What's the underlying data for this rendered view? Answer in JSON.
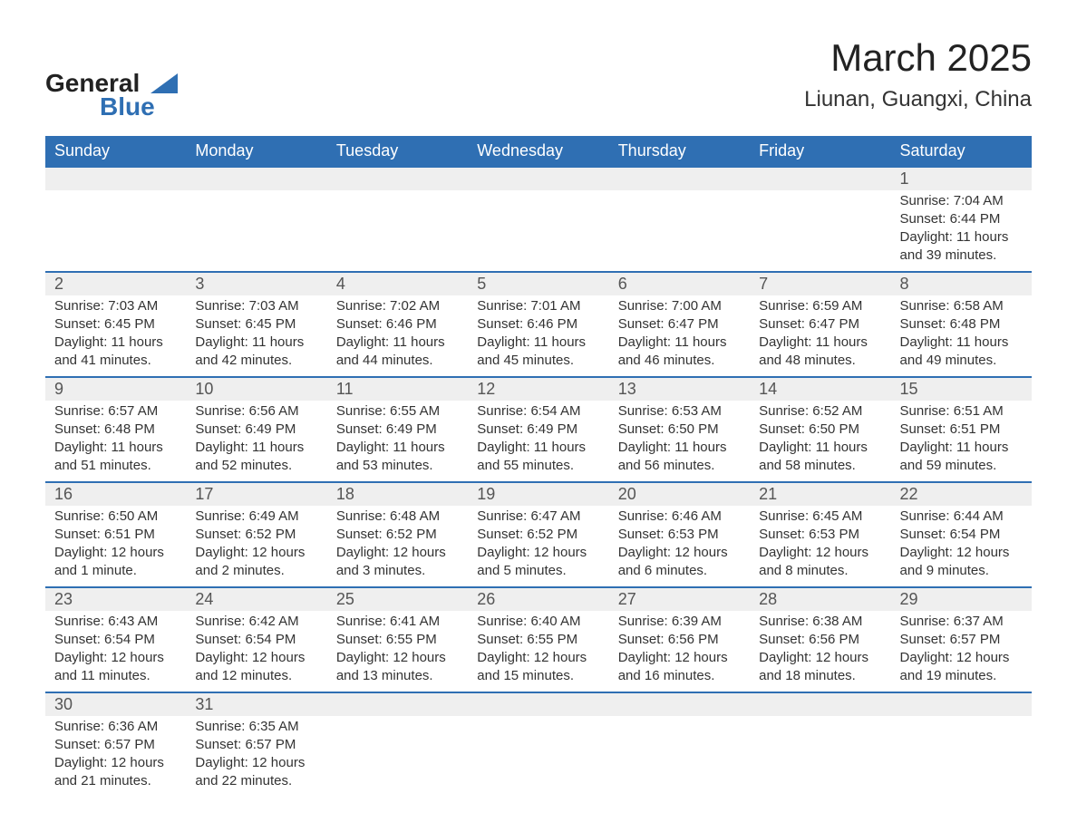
{
  "brand": {
    "name_top": "General",
    "name_bottom": "Blue",
    "accent_color": "#2f6fb3"
  },
  "title": "March 2025",
  "subtitle": "Liunan, Guangxi, China",
  "calendar": {
    "header_bg": "#2f6fb3",
    "header_text_color": "#ffffff",
    "daynum_bg": "#efefef",
    "row_divider_color": "#2f6fb3",
    "text_color": "#333333",
    "columns": [
      "Sunday",
      "Monday",
      "Tuesday",
      "Wednesday",
      "Thursday",
      "Friday",
      "Saturday"
    ],
    "weeks": [
      [
        null,
        null,
        null,
        null,
        null,
        null,
        {
          "n": "1",
          "sunrise": "Sunrise: 7:04 AM",
          "sunset": "Sunset: 6:44 PM",
          "dl1": "Daylight: 11 hours",
          "dl2": "and 39 minutes."
        }
      ],
      [
        {
          "n": "2",
          "sunrise": "Sunrise: 7:03 AM",
          "sunset": "Sunset: 6:45 PM",
          "dl1": "Daylight: 11 hours",
          "dl2": "and 41 minutes."
        },
        {
          "n": "3",
          "sunrise": "Sunrise: 7:03 AM",
          "sunset": "Sunset: 6:45 PM",
          "dl1": "Daylight: 11 hours",
          "dl2": "and 42 minutes."
        },
        {
          "n": "4",
          "sunrise": "Sunrise: 7:02 AM",
          "sunset": "Sunset: 6:46 PM",
          "dl1": "Daylight: 11 hours",
          "dl2": "and 44 minutes."
        },
        {
          "n": "5",
          "sunrise": "Sunrise: 7:01 AM",
          "sunset": "Sunset: 6:46 PM",
          "dl1": "Daylight: 11 hours",
          "dl2": "and 45 minutes."
        },
        {
          "n": "6",
          "sunrise": "Sunrise: 7:00 AM",
          "sunset": "Sunset: 6:47 PM",
          "dl1": "Daylight: 11 hours",
          "dl2": "and 46 minutes."
        },
        {
          "n": "7",
          "sunrise": "Sunrise: 6:59 AM",
          "sunset": "Sunset: 6:47 PM",
          "dl1": "Daylight: 11 hours",
          "dl2": "and 48 minutes."
        },
        {
          "n": "8",
          "sunrise": "Sunrise: 6:58 AM",
          "sunset": "Sunset: 6:48 PM",
          "dl1": "Daylight: 11 hours",
          "dl2": "and 49 minutes."
        }
      ],
      [
        {
          "n": "9",
          "sunrise": "Sunrise: 6:57 AM",
          "sunset": "Sunset: 6:48 PM",
          "dl1": "Daylight: 11 hours",
          "dl2": "and 51 minutes."
        },
        {
          "n": "10",
          "sunrise": "Sunrise: 6:56 AM",
          "sunset": "Sunset: 6:49 PM",
          "dl1": "Daylight: 11 hours",
          "dl2": "and 52 minutes."
        },
        {
          "n": "11",
          "sunrise": "Sunrise: 6:55 AM",
          "sunset": "Sunset: 6:49 PM",
          "dl1": "Daylight: 11 hours",
          "dl2": "and 53 minutes."
        },
        {
          "n": "12",
          "sunrise": "Sunrise: 6:54 AM",
          "sunset": "Sunset: 6:49 PM",
          "dl1": "Daylight: 11 hours",
          "dl2": "and 55 minutes."
        },
        {
          "n": "13",
          "sunrise": "Sunrise: 6:53 AM",
          "sunset": "Sunset: 6:50 PM",
          "dl1": "Daylight: 11 hours",
          "dl2": "and 56 minutes."
        },
        {
          "n": "14",
          "sunrise": "Sunrise: 6:52 AM",
          "sunset": "Sunset: 6:50 PM",
          "dl1": "Daylight: 11 hours",
          "dl2": "and 58 minutes."
        },
        {
          "n": "15",
          "sunrise": "Sunrise: 6:51 AM",
          "sunset": "Sunset: 6:51 PM",
          "dl1": "Daylight: 11 hours",
          "dl2": "and 59 minutes."
        }
      ],
      [
        {
          "n": "16",
          "sunrise": "Sunrise: 6:50 AM",
          "sunset": "Sunset: 6:51 PM",
          "dl1": "Daylight: 12 hours",
          "dl2": "and 1 minute."
        },
        {
          "n": "17",
          "sunrise": "Sunrise: 6:49 AM",
          "sunset": "Sunset: 6:52 PM",
          "dl1": "Daylight: 12 hours",
          "dl2": "and 2 minutes."
        },
        {
          "n": "18",
          "sunrise": "Sunrise: 6:48 AM",
          "sunset": "Sunset: 6:52 PM",
          "dl1": "Daylight: 12 hours",
          "dl2": "and 3 minutes."
        },
        {
          "n": "19",
          "sunrise": "Sunrise: 6:47 AM",
          "sunset": "Sunset: 6:52 PM",
          "dl1": "Daylight: 12 hours",
          "dl2": "and 5 minutes."
        },
        {
          "n": "20",
          "sunrise": "Sunrise: 6:46 AM",
          "sunset": "Sunset: 6:53 PM",
          "dl1": "Daylight: 12 hours",
          "dl2": "and 6 minutes."
        },
        {
          "n": "21",
          "sunrise": "Sunrise: 6:45 AM",
          "sunset": "Sunset: 6:53 PM",
          "dl1": "Daylight: 12 hours",
          "dl2": "and 8 minutes."
        },
        {
          "n": "22",
          "sunrise": "Sunrise: 6:44 AM",
          "sunset": "Sunset: 6:54 PM",
          "dl1": "Daylight: 12 hours",
          "dl2": "and 9 minutes."
        }
      ],
      [
        {
          "n": "23",
          "sunrise": "Sunrise: 6:43 AM",
          "sunset": "Sunset: 6:54 PM",
          "dl1": "Daylight: 12 hours",
          "dl2": "and 11 minutes."
        },
        {
          "n": "24",
          "sunrise": "Sunrise: 6:42 AM",
          "sunset": "Sunset: 6:54 PM",
          "dl1": "Daylight: 12 hours",
          "dl2": "and 12 minutes."
        },
        {
          "n": "25",
          "sunrise": "Sunrise: 6:41 AM",
          "sunset": "Sunset: 6:55 PM",
          "dl1": "Daylight: 12 hours",
          "dl2": "and 13 minutes."
        },
        {
          "n": "26",
          "sunrise": "Sunrise: 6:40 AM",
          "sunset": "Sunset: 6:55 PM",
          "dl1": "Daylight: 12 hours",
          "dl2": "and 15 minutes."
        },
        {
          "n": "27",
          "sunrise": "Sunrise: 6:39 AM",
          "sunset": "Sunset: 6:56 PM",
          "dl1": "Daylight: 12 hours",
          "dl2": "and 16 minutes."
        },
        {
          "n": "28",
          "sunrise": "Sunrise: 6:38 AM",
          "sunset": "Sunset: 6:56 PM",
          "dl1": "Daylight: 12 hours",
          "dl2": "and 18 minutes."
        },
        {
          "n": "29",
          "sunrise": "Sunrise: 6:37 AM",
          "sunset": "Sunset: 6:57 PM",
          "dl1": "Daylight: 12 hours",
          "dl2": "and 19 minutes."
        }
      ],
      [
        {
          "n": "30",
          "sunrise": "Sunrise: 6:36 AM",
          "sunset": "Sunset: 6:57 PM",
          "dl1": "Daylight: 12 hours",
          "dl2": "and 21 minutes."
        },
        {
          "n": "31",
          "sunrise": "Sunrise: 6:35 AM",
          "sunset": "Sunset: 6:57 PM",
          "dl1": "Daylight: 12 hours",
          "dl2": "and 22 minutes."
        },
        null,
        null,
        null,
        null,
        null
      ]
    ]
  }
}
